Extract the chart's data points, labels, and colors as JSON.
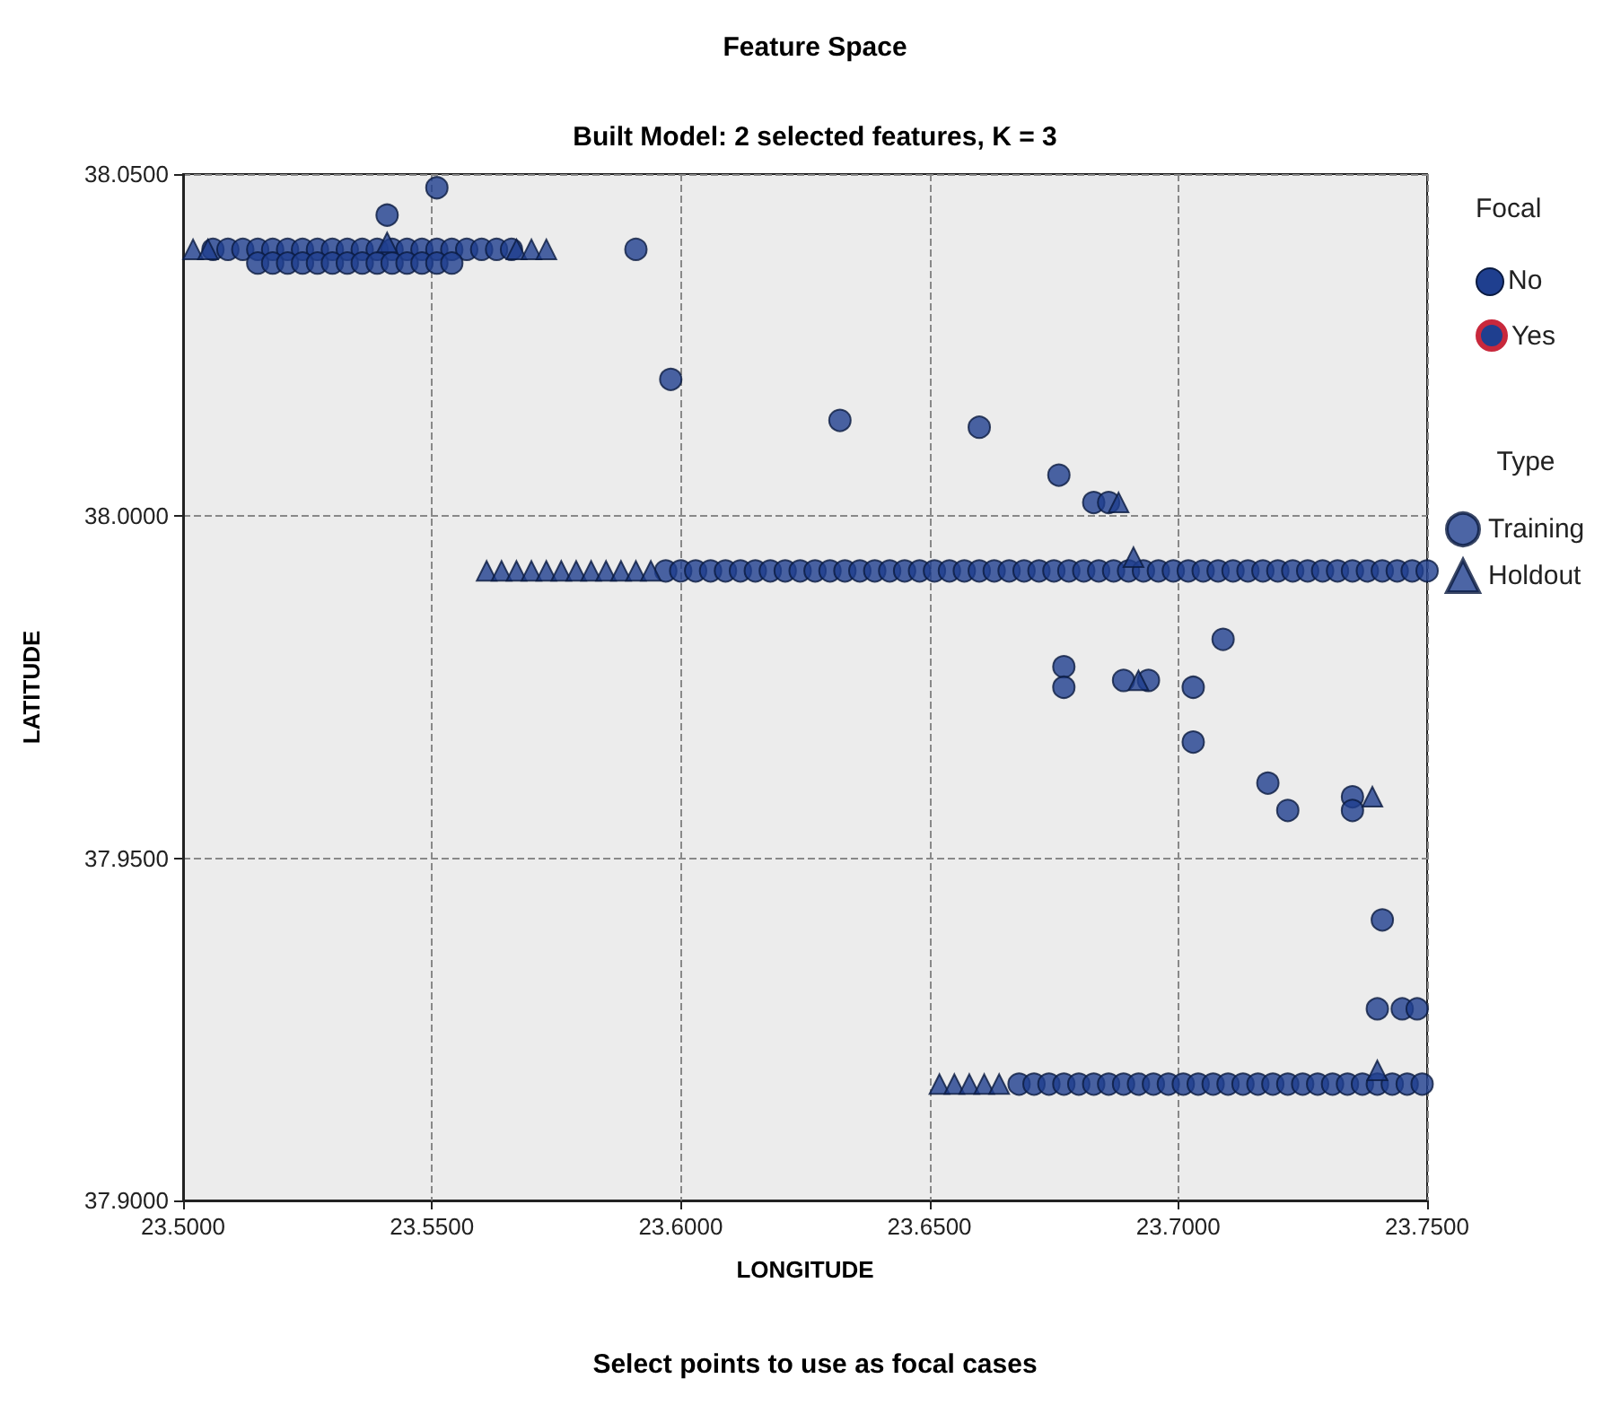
{
  "chart_data": {
    "type": "scatter",
    "title": "Feature Space",
    "subtitle": "Built Model: 2 selected features, K = 3",
    "xlabel": "LONGITUDE",
    "ylabel": "LATITUDE",
    "legend_title": "Type",
    "annotations": [
      "Focal",
      "No",
      "Yes",
      "Select points to use as focal cases"
    ],
    "xlim": [
      23.5,
      23.75
    ],
    "ylim": [
      37.9,
      38.05
    ],
    "xticks": [
      {
        "value": 23.5,
        "label": "23.5000"
      },
      {
        "value": 23.55,
        "label": "23.5500"
      },
      {
        "value": 23.6,
        "label": "23.6000"
      },
      {
        "value": 23.65,
        "label": "23.6500"
      },
      {
        "value": 23.7,
        "label": "23.7000"
      },
      {
        "value": 23.75,
        "label": "23.7500"
      }
    ],
    "yticks": [
      {
        "value": 37.9,
        "label": "37.9000"
      },
      {
        "value": 37.95,
        "label": "37.9500"
      },
      {
        "value": 38.0,
        "label": "38.0000"
      },
      {
        "value": 38.05,
        "label": "38.0500"
      }
    ],
    "grid": true,
    "legend": "right",
    "series": [
      {
        "name": "Training",
        "color": "#1f3f8f",
        "marker": "circle",
        "x": [
          23.506,
          23.509,
          23.512,
          23.515,
          23.518,
          23.521,
          23.524,
          23.527,
          23.53,
          23.533,
          23.536,
          23.539,
          23.542,
          23.545,
          23.548,
          23.551,
          23.554,
          23.557,
          23.56,
          23.563,
          23.566,
          23.515,
          23.518,
          23.521,
          23.524,
          23.527,
          23.53,
          23.533,
          23.536,
          23.539,
          23.542,
          23.545,
          23.548,
          23.551,
          23.554,
          23.551,
          23.541,
          23.591,
          23.598,
          23.632,
          23.66,
          23.676,
          23.683,
          23.686,
          23.597,
          23.6,
          23.603,
          23.606,
          23.609,
          23.612,
          23.615,
          23.618,
          23.621,
          23.624,
          23.627,
          23.63,
          23.633,
          23.636,
          23.639,
          23.642,
          23.645,
          23.648,
          23.651,
          23.654,
          23.657,
          23.66,
          23.663,
          23.666,
          23.669,
          23.672,
          23.675,
          23.678,
          23.681,
          23.684,
          23.687,
          23.69,
          23.693,
          23.696,
          23.699,
          23.702,
          23.705,
          23.708,
          23.711,
          23.714,
          23.717,
          23.72,
          23.723,
          23.726,
          23.729,
          23.732,
          23.735,
          23.738,
          23.741,
          23.744,
          23.747,
          23.75,
          23.677,
          23.677,
          23.689,
          23.694,
          23.703,
          23.703,
          23.709,
          23.718,
          23.722,
          23.735,
          23.735,
          23.741,
          23.74,
          23.745,
          23.748,
          23.668,
          23.671,
          23.674,
          23.677,
          23.68,
          23.683,
          23.686,
          23.689,
          23.692,
          23.695,
          23.698,
          23.701,
          23.704,
          23.707,
          23.71,
          23.713,
          23.716,
          23.719,
          23.722,
          23.725,
          23.728,
          23.731,
          23.734,
          23.737,
          23.74,
          23.743,
          23.746,
          23.749
        ],
        "values": [
          38.039,
          38.039,
          38.039,
          38.039,
          38.039,
          38.039,
          38.039,
          38.039,
          38.039,
          38.039,
          38.039,
          38.039,
          38.039,
          38.039,
          38.039,
          38.039,
          38.039,
          38.039,
          38.039,
          38.039,
          38.039,
          38.037,
          38.037,
          38.037,
          38.037,
          38.037,
          38.037,
          38.037,
          38.037,
          38.037,
          38.037,
          38.037,
          38.037,
          38.037,
          38.037,
          38.048,
          38.044,
          38.039,
          38.02,
          38.014,
          38.013,
          38.006,
          38.002,
          38.002,
          37.992,
          37.992,
          37.992,
          37.992,
          37.992,
          37.992,
          37.992,
          37.992,
          37.992,
          37.992,
          37.992,
          37.992,
          37.992,
          37.992,
          37.992,
          37.992,
          37.992,
          37.992,
          37.992,
          37.992,
          37.992,
          37.992,
          37.992,
          37.992,
          37.992,
          37.992,
          37.992,
          37.992,
          37.992,
          37.992,
          37.992,
          37.992,
          37.992,
          37.992,
          37.992,
          37.992,
          37.992,
          37.992,
          37.992,
          37.992,
          37.992,
          37.992,
          37.992,
          37.992,
          37.992,
          37.992,
          37.992,
          37.992,
          37.992,
          37.992,
          37.992,
          37.992,
          37.978,
          37.975,
          37.976,
          37.976,
          37.975,
          37.967,
          37.982,
          37.961,
          37.957,
          37.959,
          37.957,
          37.941,
          37.928,
          37.928,
          37.928,
          37.917,
          37.917,
          37.917,
          37.917,
          37.917,
          37.917,
          37.917,
          37.917,
          37.917,
          37.917,
          37.917,
          37.917,
          37.917,
          37.917,
          37.917,
          37.917,
          37.917,
          37.917,
          37.917,
          37.917,
          37.917,
          37.917,
          37.917,
          37.917,
          37.917,
          37.917,
          37.917,
          37.917
        ]
      },
      {
        "name": "Holdout",
        "color": "#1f3f8f",
        "marker": "triangle",
        "x": [
          23.502,
          23.505,
          23.541,
          23.567,
          23.57,
          23.573,
          23.561,
          23.564,
          23.567,
          23.57,
          23.573,
          23.576,
          23.579,
          23.582,
          23.585,
          23.588,
          23.591,
          23.594,
          23.688,
          23.691,
          23.692,
          23.739,
          23.74,
          23.652,
          23.655,
          23.658,
          23.661,
          23.664
        ],
        "values": [
          38.039,
          38.039,
          38.04,
          38.039,
          38.039,
          38.039,
          37.992,
          37.992,
          37.992,
          37.992,
          37.992,
          37.992,
          37.992,
          37.992,
          37.992,
          37.992,
          37.992,
          37.992,
          38.002,
          37.994,
          37.976,
          37.959,
          37.919,
          37.917,
          37.917,
          37.917,
          37.917,
          37.917
        ]
      }
    ]
  }
}
